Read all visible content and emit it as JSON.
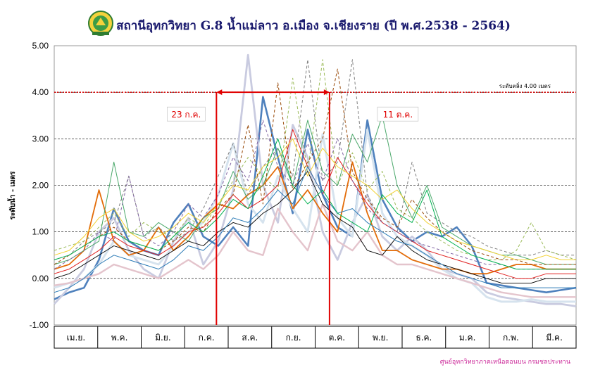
{
  "chart_data": {
    "type": "line",
    "title": "สถานีอุทกวิทยา G.8 น้ำแม่ลาว อ.เมือง จ.เชียงราย (ปี พ.ศ.2538 - 2564)",
    "ylabel": "ระดับน้ำ - เมตร",
    "xlabel": "",
    "ylim": [
      -1.0,
      5.0
    ],
    "yticks": [
      "-1.00",
      "0.00",
      "1.00",
      "2.00",
      "3.00",
      "4.00",
      "5.00"
    ],
    "ytick_values": [
      -1,
      0,
      1,
      2,
      3,
      4,
      5
    ],
    "months": [
      "เม.ย.",
      "พ.ค.",
      "มิ.ย.",
      "ก.ค.",
      "ส.ค.",
      "ก.ย.",
      "ต.ค.",
      "พ.ย.",
      "ธ.ค.",
      "ม.ค.",
      "ก.พ.",
      "มี.ค."
    ],
    "grid": true,
    "threshold": {
      "value": 4.0,
      "label": "ระดับตลิ่ง 4.00 เมตร",
      "color": "#dd1111"
    },
    "markers": [
      {
        "label": "23 ก.ค.",
        "month_pos": 3.73,
        "color": "#e00000"
      },
      {
        "label": "11 ต.ค.",
        "month_pos": 6.33,
        "color": "#e00000"
      }
    ],
    "credit": "ศูนย์อุทกวิทยาภาคเหนือตอนบน กรมชลประทาน",
    "series": [
      {
        "color": "#4f81bd",
        "width": 2.6,
        "dash": "",
        "values": [
          -0.45,
          -0.3,
          -0.2,
          0.4,
          1.5,
          0.8,
          0.6,
          0.5,
          1.2,
          1.6,
          0.9,
          0.7,
          1.1,
          0.7,
          3.9,
          2.6,
          1.4,
          3.2,
          1.8,
          1.1,
          0.9,
          3.4,
          1.7,
          1.1,
          0.8,
          1.0,
          0.9,
          1.1,
          0.7,
          -0.1,
          -0.15,
          -0.2,
          -0.25,
          -0.3,
          -0.25,
          -0.2
        ]
      },
      {
        "color": "#c9cbe0",
        "width": 2.8,
        "dash": "",
        "values": [
          -0.55,
          -0.2,
          0.2,
          1.0,
          1.3,
          0.6,
          0.2,
          0.0,
          0.8,
          1.3,
          0.3,
          0.8,
          1.9,
          4.8,
          2.0,
          1.2,
          3.3,
          2.6,
          1.0,
          0.4,
          1.2,
          1.8,
          0.9,
          0.6,
          0.9,
          0.6,
          0.2,
          0.1,
          0.0,
          -0.3,
          -0.4,
          -0.45,
          -0.5,
          -0.55,
          -0.55,
          -0.6
        ]
      },
      {
        "color": "#d6e3ee",
        "width": 3.0,
        "dash": "",
        "values": [
          -0.2,
          -0.1,
          0.0,
          0.3,
          0.8,
          0.5,
          0.4,
          0.3,
          0.7,
          1.0,
          1.2,
          1.8,
          2.9,
          1.6,
          1.2,
          2.2,
          1.5,
          1.0,
          3.1,
          1.3,
          0.9,
          3.2,
          1.4,
          0.9,
          0.7,
          0.5,
          0.2,
          0.0,
          -0.1,
          -0.4,
          -0.5,
          -0.5,
          -0.45,
          -0.5,
          -0.5,
          -0.5
        ]
      },
      {
        "color": "#e4c4cc",
        "width": 2.4,
        "dash": "",
        "values": [
          -0.15,
          -0.1,
          0.0,
          0.1,
          0.3,
          0.2,
          0.1,
          0.0,
          0.2,
          0.4,
          0.2,
          0.5,
          1.0,
          0.6,
          0.5,
          1.5,
          1.0,
          0.6,
          1.6,
          0.8,
          0.6,
          1.0,
          0.5,
          0.3,
          0.3,
          0.2,
          0.1,
          0.0,
          -0.1,
          -0.2,
          -0.3,
          -0.35,
          -0.4,
          -0.4,
          -0.4,
          -0.4
        ]
      },
      {
        "color": "#e36c09",
        "width": 1.8,
        "dash": "",
        "values": [
          0.2,
          0.3,
          0.6,
          1.9,
          0.8,
          0.5,
          0.6,
          1.1,
          0.6,
          0.9,
          1.3,
          1.6,
          1.5,
          1.8,
          2.0,
          2.4,
          1.5,
          1.9,
          1.4,
          1.0,
          2.5,
          1.4,
          0.6,
          0.6,
          0.4,
          0.3,
          0.2,
          0.2,
          0.1,
          0.1,
          0.2,
          0.3,
          0.3,
          0.2,
          0.2,
          0.2
        ]
      },
      {
        "color": "#7f7f7f",
        "width": 1.0,
        "dash": "4,3",
        "values": [
          0.4,
          0.5,
          0.8,
          1.0,
          1.2,
          2.2,
          0.9,
          1.1,
          0.8,
          1.0,
          1.5,
          2.2,
          2.9,
          1.8,
          2.4,
          2.8,
          2.2,
          4.7,
          2.1,
          2.5,
          4.7,
          1.8,
          1.2,
          1.0,
          2.5,
          1.4,
          1.2,
          1.0,
          0.9,
          0.7,
          0.6,
          0.5,
          0.5,
          0.6,
          0.5,
          0.5
        ]
      },
      {
        "color": "#9bbb59",
        "width": 1.0,
        "dash": "4,3",
        "values": [
          0.6,
          0.7,
          0.8,
          1.1,
          1.4,
          0.9,
          1.2,
          1.0,
          0.9,
          1.3,
          1.1,
          1.6,
          2.1,
          2.6,
          2.2,
          1.9,
          4.3,
          2.3,
          4.7,
          2.0,
          2.7,
          1.9,
          2.3,
          1.5,
          1.3,
          1.0,
          0.8,
          0.6,
          0.5,
          0.4,
          0.4,
          0.6,
          1.2,
          0.6,
          0.5,
          0.4
        ]
      },
      {
        "color": "#4aa86a",
        "width": 1.0,
        "dash": "",
        "values": [
          0.3,
          0.4,
          0.6,
          0.8,
          2.5,
          1.0,
          0.9,
          1.2,
          1.0,
          0.8,
          1.3,
          1.5,
          2.3,
          1.7,
          2.0,
          2.8,
          2.0,
          3.4,
          2.3,
          2.0,
          3.1,
          2.5,
          3.5,
          2.0,
          1.3,
          2.0,
          1.1,
          0.9,
          0.7,
          0.6,
          0.5,
          0.5,
          0.4,
          0.3,
          0.3,
          0.3
        ]
      },
      {
        "color": "#e02020",
        "width": 1.0,
        "dash": "",
        "values": [
          0.1,
          0.2,
          0.4,
          0.6,
          0.9,
          0.7,
          0.6,
          0.5,
          0.7,
          1.0,
          1.1,
          1.4,
          1.8,
          1.5,
          1.7,
          2.0,
          3.2,
          2.4,
          1.8,
          2.6,
          2.1,
          1.6,
          1.2,
          1.0,
          0.8,
          0.6,
          0.5,
          0.4,
          0.3,
          0.2,
          0.1,
          0.0,
          0.0,
          0.1,
          0.1,
          0.1
        ]
      },
      {
        "color": "#000000",
        "width": 0.9,
        "dash": "",
        "values": [
          0.0,
          0.1,
          0.3,
          0.5,
          0.7,
          0.6,
          0.5,
          0.4,
          0.6,
          0.8,
          0.7,
          1.0,
          1.2,
          1.1,
          1.4,
          1.6,
          1.9,
          2.3,
          1.6,
          1.3,
          1.1,
          0.6,
          0.5,
          0.9,
          0.6,
          0.4,
          0.3,
          0.2,
          0.1,
          0.0,
          -0.1,
          -0.1,
          -0.1,
          0.0,
          0.0,
          0.0
        ]
      },
      {
        "color": "#f2d233",
        "width": 1.0,
        "dash": "",
        "values": [
          0.5,
          0.6,
          0.9,
          1.3,
          1.5,
          1.0,
          0.8,
          0.9,
          1.1,
          1.4,
          1.2,
          1.6,
          2.0,
          1.9,
          2.4,
          2.6,
          3.0,
          2.2,
          2.8,
          2.4,
          2.2,
          2.0,
          1.7,
          1.9,
          1.5,
          1.2,
          1.0,
          0.8,
          0.7,
          0.6,
          0.5,
          0.4,
          0.4,
          0.5,
          0.4,
          0.4
        ]
      },
      {
        "color": "#8064a2",
        "width": 1.0,
        "dash": "4,3",
        "values": [
          0.2,
          0.4,
          0.6,
          1.0,
          0.8,
          2.2,
          0.9,
          0.7,
          1.0,
          1.6,
          1.3,
          1.8,
          2.6,
          2.1,
          3.4,
          2.4,
          2.0,
          2.9,
          2.1,
          3.0,
          2.1,
          1.5,
          1.2,
          1.0,
          0.8,
          0.7,
          0.6,
          0.5,
          0.4,
          0.3,
          0.3,
          0.2,
          0.2,
          0.2,
          0.2,
          0.2
        ]
      },
      {
        "color": "#2c7bb6",
        "width": 1.0,
        "dash": "",
        "values": [
          -0.3,
          -0.2,
          0.0,
          0.3,
          0.5,
          0.4,
          0.3,
          0.2,
          0.4,
          0.7,
          0.6,
          0.9,
          1.3,
          1.2,
          1.5,
          1.9,
          1.6,
          2.4,
          1.8,
          1.4,
          1.5,
          1.2,
          1.0,
          0.8,
          0.7,
          0.5,
          0.3,
          0.1,
          0.0,
          -0.1,
          -0.2,
          -0.2,
          -0.2,
          -0.2,
          -0.2,
          -0.2
        ]
      },
      {
        "color": "#984807",
        "width": 1.0,
        "dash": "4,3",
        "values": [
          0.3,
          0.5,
          0.7,
          0.9,
          1.1,
          0.8,
          0.7,
          0.6,
          0.8,
          1.1,
          1.0,
          1.5,
          1.8,
          3.3,
          1.6,
          4.2,
          1.9,
          2.5,
          3.0,
          4.5,
          2.3,
          1.7,
          1.3,
          1.1,
          1.7,
          1.3,
          1.0,
          0.8,
          0.6,
          0.5,
          0.4,
          0.4,
          0.3,
          0.3,
          0.3,
          0.3
        ]
      },
      {
        "color": "#00b050",
        "width": 1.0,
        "dash": "",
        "values": [
          0.4,
          0.5,
          0.7,
          0.9,
          1.0,
          0.8,
          0.7,
          0.6,
          0.9,
          1.2,
          1.0,
          1.3,
          1.7,
          1.5,
          2.2,
          3.0,
          2.0,
          1.6,
          1.9,
          1.4,
          1.2,
          1.0,
          1.8,
          1.4,
          1.2,
          1.9,
          0.9,
          0.7,
          0.5,
          0.4,
          0.3,
          0.2,
          0.2,
          0.2,
          0.2,
          0.2
        ]
      }
    ]
  }
}
